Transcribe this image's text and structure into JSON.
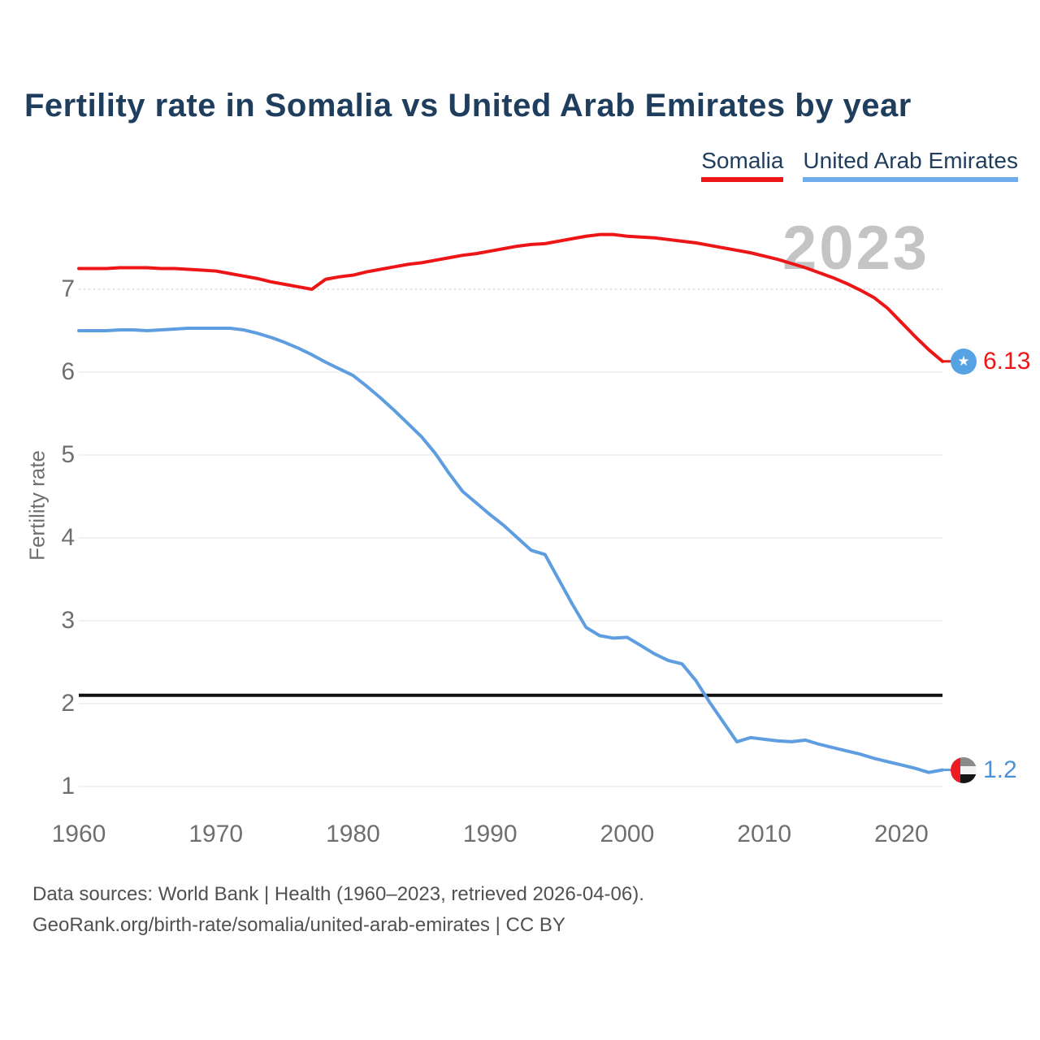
{
  "header": {
    "title": "Fertility rate in Somalia vs United Arab Emirates by year"
  },
  "legend": {
    "items": [
      {
        "label": "Somalia",
        "color": "#ed1515"
      },
      {
        "label": "United Arab Emirates",
        "color": "#6fadea"
      }
    ]
  },
  "chart_data": {
    "type": "line",
    "title": "Fertility rate in Somalia vs United Arab Emirates by year",
    "xlabel": "",
    "ylabel": "Fertility rate",
    "watermark_year": "2023",
    "x_range": [
      1960,
      2023
    ],
    "x_ticks": [
      1960,
      1970,
      1980,
      1990,
      2000,
      2010,
      2020
    ],
    "y_ticks": [
      7,
      6,
      5,
      4,
      3,
      2,
      1
    ],
    "ylim": [
      0.85,
      7.85
    ],
    "grid": "horizontal",
    "legend_position": "top-right",
    "reference_line": {
      "value": 2.1,
      "color": "#111111"
    },
    "x": [
      1960,
      1961,
      1962,
      1963,
      1964,
      1965,
      1966,
      1967,
      1968,
      1969,
      1970,
      1971,
      1972,
      1973,
      1974,
      1975,
      1976,
      1977,
      1978,
      1979,
      1980,
      1981,
      1982,
      1983,
      1984,
      1985,
      1986,
      1987,
      1988,
      1989,
      1990,
      1991,
      1992,
      1993,
      1994,
      1995,
      1996,
      1997,
      1998,
      1999,
      2000,
      2001,
      2002,
      2003,
      2004,
      2005,
      2006,
      2007,
      2008,
      2009,
      2010,
      2011,
      2012,
      2013,
      2014,
      2015,
      2016,
      2017,
      2018,
      2019,
      2020,
      2021,
      2022,
      2023
    ],
    "series": [
      {
        "id": "somalia",
        "name": "Somalia",
        "color": "#ed1515",
        "end_label": "6.13",
        "end_label_color": "#ed1515",
        "values": [
          7.25,
          7.25,
          7.25,
          7.26,
          7.26,
          7.26,
          7.25,
          7.25,
          7.24,
          7.23,
          7.22,
          7.19,
          7.16,
          7.13,
          7.09,
          7.06,
          7.03,
          7.0,
          7.12,
          7.15,
          7.17,
          7.21,
          7.24,
          7.27,
          7.3,
          7.32,
          7.35,
          7.38,
          7.41,
          7.43,
          7.46,
          7.49,
          7.52,
          7.54,
          7.55,
          7.58,
          7.61,
          7.64,
          7.66,
          7.66,
          7.64,
          7.63,
          7.62,
          7.6,
          7.58,
          7.56,
          7.53,
          7.5,
          7.47,
          7.44,
          7.4,
          7.36,
          7.31,
          7.26,
          7.2,
          7.14,
          7.07,
          6.99,
          6.9,
          6.77,
          6.6,
          6.43,
          6.27,
          6.13
        ]
      },
      {
        "id": "uae",
        "name": "United Arab Emirates",
        "color": "#5d9de0",
        "end_label": "1.2",
        "end_label_color": "#4a93d9",
        "values": [
          6.5,
          6.5,
          6.5,
          6.51,
          6.51,
          6.5,
          6.51,
          6.52,
          6.53,
          6.53,
          6.53,
          6.53,
          6.51,
          6.47,
          6.42,
          6.36,
          6.29,
          6.21,
          6.12,
          6.04,
          5.96,
          5.83,
          5.69,
          5.54,
          5.38,
          5.22,
          5.02,
          4.78,
          4.56,
          4.42,
          4.28,
          4.15,
          4.0,
          3.85,
          3.8,
          3.5,
          3.2,
          2.92,
          2.82,
          2.79,
          2.8,
          2.7,
          2.6,
          2.52,
          2.48,
          2.28,
          2.02,
          1.78,
          1.54,
          1.59,
          1.57,
          1.55,
          1.54,
          1.56,
          1.51,
          1.47,
          1.43,
          1.39,
          1.34,
          1.3,
          1.26,
          1.22,
          1.17,
          1.2
        ]
      }
    ]
  },
  "footer": {
    "line1": "Data sources: World Bank | Health (1960–2023, retrieved 2026-04-06).",
    "line2": "GeoRank.org/birth-rate/somalia/united-arab-emirates | CC BY"
  }
}
